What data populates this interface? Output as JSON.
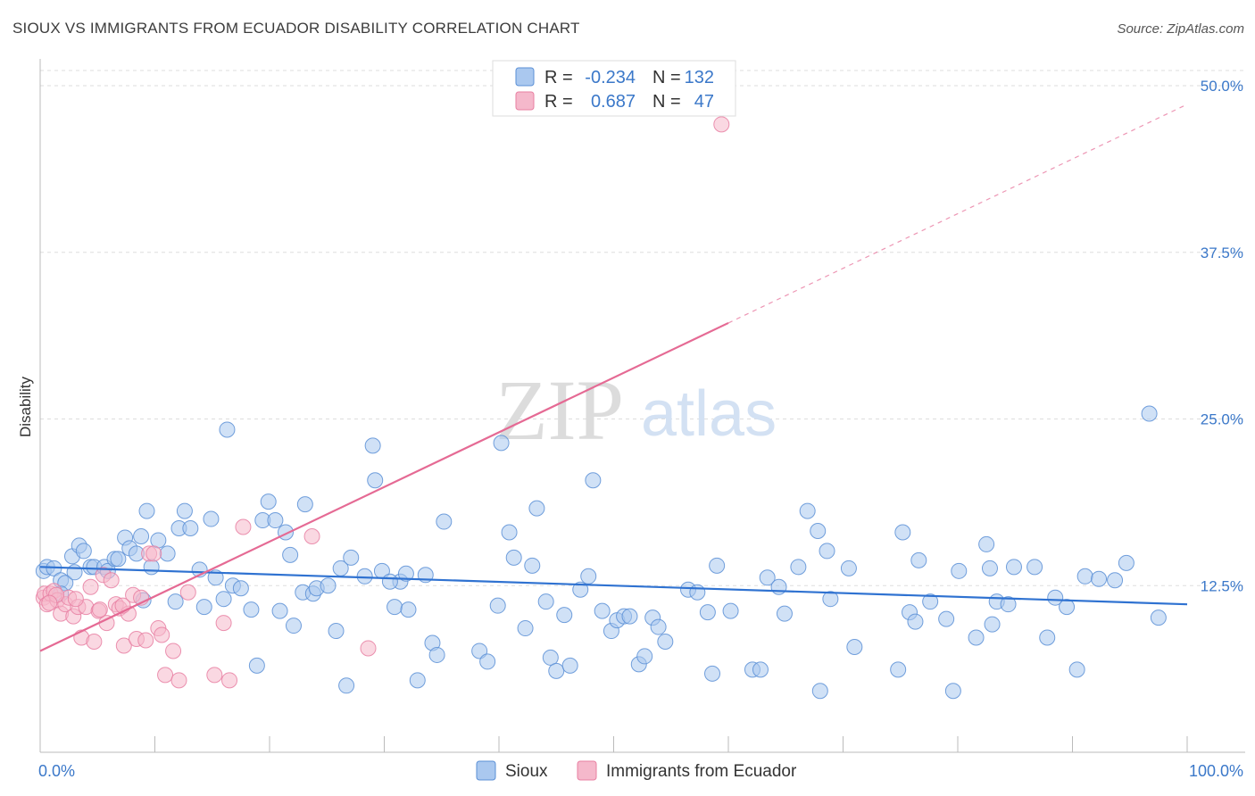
{
  "header": {
    "title": "SIOUX VS IMMIGRANTS FROM ECUADOR DISABILITY CORRELATION CHART",
    "source": "Source: ZipAtlas.com"
  },
  "legend_top": {
    "rows": [
      {
        "r_label": "R =",
        "r_value": "-0.234",
        "n_label": "N =",
        "n_value": "132",
        "color": "#aac8ef",
        "stroke": "#5b8fd6"
      },
      {
        "r_label": "R =",
        "r_value": "0.687",
        "n_label": "N =",
        "n_value": "47",
        "color": "#f5b8cb",
        "stroke": "#e87fa2"
      }
    ]
  },
  "watermark": {
    "zip": "ZIP",
    "atlas": "atlas"
  },
  "chart_data": {
    "type": "scatter",
    "title": "SIOUX VS IMMIGRANTS FROM ECUADOR DISABILITY CORRELATION CHART",
    "ylabel": "Disability",
    "xlabel": "",
    "xlim": [
      0,
      100
    ],
    "ylim": [
      0,
      50
    ],
    "x_tick_labels": [
      "0.0%",
      "100.0%"
    ],
    "y_ticks": [
      12.5,
      25.0,
      37.5,
      50.0
    ],
    "y_tick_labels": [
      "12.5%",
      "25.0%",
      "37.5%",
      "50.0%"
    ],
    "series": [
      {
        "name": "Sioux",
        "color": "#aac8ef",
        "stroke": "#5b8fd6",
        "trend": {
          "x0": 0,
          "y0": 13.9,
          "x1": 100,
          "y1": 11.1,
          "color": "#2f72d1"
        },
        "points": [
          [
            0.3,
            13.6
          ],
          [
            0.6,
            13.9
          ],
          [
            1.2,
            13.8
          ],
          [
            1.8,
            12.9
          ],
          [
            2.2,
            12.7
          ],
          [
            2.8,
            14.7
          ],
          [
            3.4,
            15.5
          ],
          [
            3.8,
            15.1
          ],
          [
            4.4,
            13.9
          ],
          [
            4.7,
            13.9
          ],
          [
            5.6,
            13.9
          ],
          [
            5.9,
            13.6
          ],
          [
            6.5,
            14.5
          ],
          [
            6.8,
            14.5
          ],
          [
            7.4,
            16.1
          ],
          [
            7.8,
            15.3
          ],
          [
            8.4,
            14.9
          ],
          [
            8.8,
            16.2
          ],
          [
            9.3,
            18.1
          ],
          [
            9.7,
            13.9
          ],
          [
            10.3,
            15.9
          ],
          [
            11.1,
            14.9
          ],
          [
            11.8,
            11.3
          ],
          [
            12.1,
            16.8
          ],
          [
            12.6,
            18.1
          ],
          [
            13.1,
            16.8
          ],
          [
            13.9,
            13.7
          ],
          [
            14.3,
            10.9
          ],
          [
            14.9,
            17.5
          ],
          [
            15.3,
            13.1
          ],
          [
            16.0,
            11.5
          ],
          [
            16.3,
            24.2
          ],
          [
            16.8,
            12.5
          ],
          [
            17.5,
            12.3
          ],
          [
            18.4,
            10.7
          ],
          [
            18.9,
            6.5
          ],
          [
            19.4,
            17.4
          ],
          [
            19.9,
            18.8
          ],
          [
            20.5,
            17.4
          ],
          [
            20.9,
            10.6
          ],
          [
            21.4,
            16.5
          ],
          [
            21.8,
            14.8
          ],
          [
            22.1,
            9.5
          ],
          [
            22.9,
            12.0
          ],
          [
            23.1,
            18.6
          ],
          [
            23.8,
            11.9
          ],
          [
            24.1,
            12.3
          ],
          [
            25.1,
            12.5
          ],
          [
            25.8,
            9.1
          ],
          [
            26.2,
            13.8
          ],
          [
            26.7,
            5.0
          ],
          [
            27.1,
            14.6
          ],
          [
            28.3,
            13.2
          ],
          [
            29.0,
            23.0
          ],
          [
            29.2,
            20.4
          ],
          [
            29.8,
            13.6
          ],
          [
            30.9,
            10.9
          ],
          [
            31.4,
            12.8
          ],
          [
            31.9,
            13.4
          ],
          [
            32.1,
            10.7
          ],
          [
            32.9,
            5.4
          ],
          [
            33.6,
            13.3
          ],
          [
            34.2,
            8.2
          ],
          [
            34.6,
            7.3
          ],
          [
            35.2,
            17.3
          ],
          [
            38.3,
            7.6
          ],
          [
            39.0,
            6.8
          ],
          [
            39.9,
            11.0
          ],
          [
            40.2,
            23.2
          ],
          [
            40.9,
            16.5
          ],
          [
            41.3,
            14.6
          ],
          [
            42.3,
            9.3
          ],
          [
            42.9,
            14.0
          ],
          [
            43.3,
            18.3
          ],
          [
            44.1,
            11.3
          ],
          [
            44.5,
            7.1
          ],
          [
            45.0,
            6.1
          ],
          [
            45.7,
            10.3
          ],
          [
            46.2,
            6.5
          ],
          [
            47.1,
            12.2
          ],
          [
            47.8,
            13.2
          ],
          [
            48.2,
            20.4
          ],
          [
            49.0,
            10.6
          ],
          [
            49.8,
            9.1
          ],
          [
            50.3,
            9.9
          ],
          [
            50.9,
            10.2
          ],
          [
            51.4,
            10.2
          ],
          [
            52.2,
            6.6
          ],
          [
            52.7,
            7.2
          ],
          [
            53.4,
            10.1
          ],
          [
            53.9,
            9.4
          ],
          [
            54.5,
            8.3
          ],
          [
            56.5,
            12.2
          ],
          [
            57.3,
            12.0
          ],
          [
            58.2,
            10.5
          ],
          [
            59.0,
            14.0
          ],
          [
            60.2,
            10.6
          ],
          [
            62.1,
            6.2
          ],
          [
            63.4,
            13.1
          ],
          [
            64.4,
            12.4
          ],
          [
            64.9,
            10.4
          ],
          [
            66.1,
            13.9
          ],
          [
            66.9,
            18.1
          ],
          [
            67.8,
            16.6
          ],
          [
            68.6,
            15.1
          ],
          [
            68.9,
            11.5
          ],
          [
            70.5,
            13.8
          ],
          [
            71.0,
            7.9
          ],
          [
            74.8,
            6.2
          ],
          [
            75.2,
            16.5
          ],
          [
            75.8,
            10.5
          ],
          [
            76.6,
            14.4
          ],
          [
            77.6,
            11.3
          ],
          [
            79.0,
            10.0
          ],
          [
            80.1,
            13.6
          ],
          [
            81.6,
            8.6
          ],
          [
            82.5,
            15.6
          ],
          [
            82.8,
            13.8
          ],
          [
            83.4,
            11.3
          ],
          [
            84.4,
            11.1
          ],
          [
            84.9,
            13.9
          ],
          [
            86.7,
            13.9
          ],
          [
            87.8,
            8.6
          ],
          [
            88.5,
            11.6
          ],
          [
            89.5,
            10.9
          ],
          [
            90.4,
            6.2
          ],
          [
            91.1,
            13.2
          ],
          [
            92.3,
            13.0
          ],
          [
            93.7,
            12.9
          ],
          [
            94.7,
            14.2
          ],
          [
            96.7,
            25.4
          ],
          [
            97.5,
            10.1
          ],
          [
            1.8,
            11.9
          ],
          [
            3.0,
            13.5
          ],
          [
            9.0,
            11.4
          ],
          [
            68.0,
            4.6
          ],
          [
            58.6,
            5.9
          ],
          [
            62.8,
            6.2
          ],
          [
            76.3,
            9.8
          ],
          [
            83.0,
            9.6
          ],
          [
            30.5,
            12.8
          ],
          [
            79.6,
            4.6
          ]
        ]
      },
      {
        "name": "Immigrants from Ecuador",
        "color": "#f5b8cb",
        "stroke": "#e87fa2",
        "trend": {
          "x0": 0,
          "y0": 7.6,
          "x1": 60,
          "y1": 32.2,
          "dash_to_x": 100,
          "dash_to_y": 48.6,
          "color": "#e56a94"
        },
        "points": [
          [
            0.3,
            11.6
          ],
          [
            0.4,
            11.9
          ],
          [
            0.6,
            11.1
          ],
          [
            0.9,
            11.9
          ],
          [
            1.2,
            12.1
          ],
          [
            1.5,
            11.4
          ],
          [
            1.8,
            10.4
          ],
          [
            2.2,
            11.1
          ],
          [
            2.5,
            11.6
          ],
          [
            2.9,
            10.2
          ],
          [
            3.3,
            10.9
          ],
          [
            3.6,
            8.6
          ],
          [
            4.0,
            10.9
          ],
          [
            4.4,
            12.4
          ],
          [
            4.7,
            8.3
          ],
          [
            5.1,
            10.6
          ],
          [
            5.5,
            13.3
          ],
          [
            5.8,
            9.7
          ],
          [
            6.2,
            12.9
          ],
          [
            6.6,
            11.1
          ],
          [
            6.9,
            10.8
          ],
          [
            7.3,
            8.0
          ],
          [
            7.7,
            10.4
          ],
          [
            8.1,
            11.8
          ],
          [
            8.4,
            8.5
          ],
          [
            8.8,
            11.6
          ],
          [
            9.2,
            8.4
          ],
          [
            9.5,
            14.9
          ],
          [
            9.9,
            14.9
          ],
          [
            10.3,
            9.3
          ],
          [
            10.6,
            8.8
          ],
          [
            10.9,
            5.8
          ],
          [
            11.6,
            7.6
          ],
          [
            12.1,
            5.4
          ],
          [
            12.9,
            12.0
          ],
          [
            15.2,
            5.8
          ],
          [
            16.0,
            9.7
          ],
          [
            16.5,
            5.4
          ],
          [
            17.7,
            16.9
          ],
          [
            23.7,
            16.2
          ],
          [
            28.6,
            7.8
          ],
          [
            59.4,
            47.1
          ],
          [
            7.2,
            11.0
          ],
          [
            5.2,
            10.7
          ],
          [
            3.1,
            11.5
          ],
          [
            1.4,
            11.8
          ],
          [
            0.8,
            11.2
          ]
        ]
      }
    ]
  },
  "bottom_legend": {
    "items": [
      {
        "label": "Sioux",
        "color": "#aac8ef",
        "stroke": "#5b8fd6"
      },
      {
        "label": "Immigrants from Ecuador",
        "color": "#f5b8cb",
        "stroke": "#e87fa2"
      }
    ]
  }
}
